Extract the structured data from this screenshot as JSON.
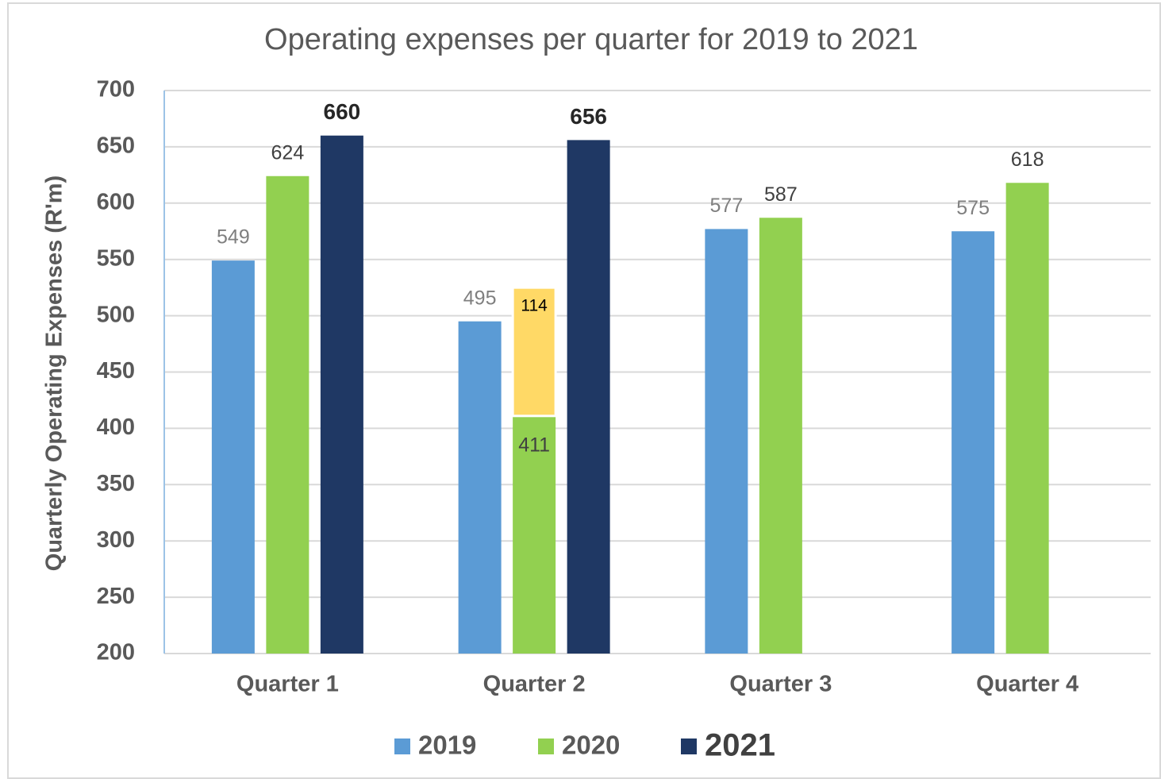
{
  "chart_data": {
    "type": "bar",
    "title": "Operating expenses per quarter for 2019 to 2021",
    "y_axis_label": "Quarterly Operating Expenses (R'm)",
    "categories": [
      "Quarter 1",
      "Quarter 2",
      "Quarter 3",
      "Quarter 4"
    ],
    "series": [
      {
        "name": "2019",
        "color": "#5b9bd5",
        "values": [
          549,
          495,
          577,
          575
        ]
      },
      {
        "name": "2020",
        "color": "#92d050",
        "values": [
          624,
          411,
          587,
          618
        ]
      },
      {
        "name": "2021",
        "color": "#1f3864",
        "values": [
          660,
          656,
          null,
          null
        ]
      }
    ],
    "extra_segment": {
      "category": 1,
      "on_series": 1,
      "value": 114,
      "color": "#ffd966"
    },
    "ylim": [
      200,
      700
    ],
    "yticks": [
      200,
      250,
      300,
      350,
      400,
      450,
      500,
      550,
      600,
      650,
      700
    ],
    "grid": true,
    "legend": "bottom"
  }
}
